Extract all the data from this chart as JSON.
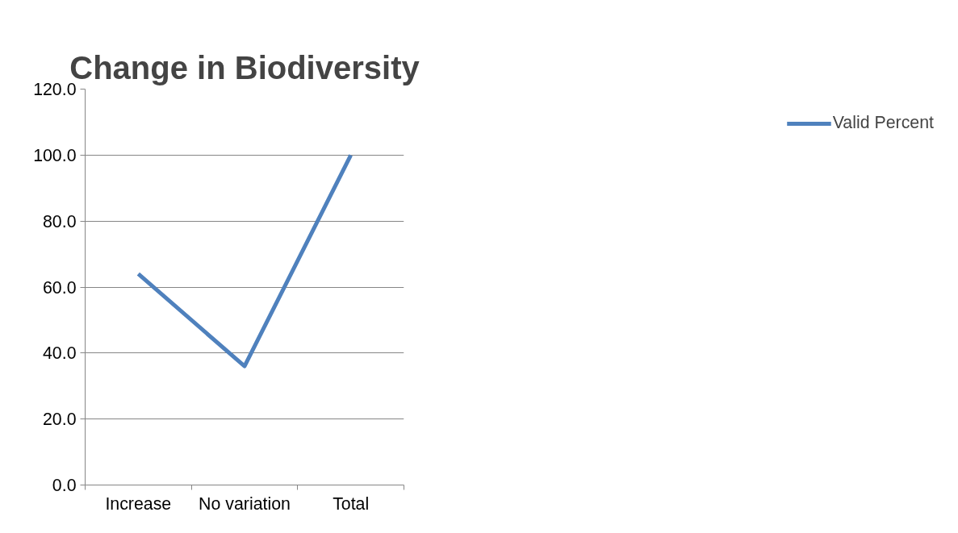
{
  "chart_data": {
    "type": "line",
    "title": "Change in Biodiversity",
    "categories": [
      "Increase",
      "No variation",
      "Total"
    ],
    "series": [
      {
        "name": "Valid Percent",
        "color": "#4f81bd",
        "values": [
          64.0,
          36.0,
          100.0
        ]
      }
    ],
    "ylim": [
      0,
      120
    ],
    "yticks": [
      {
        "value": 0,
        "label": "0.0"
      },
      {
        "value": 20,
        "label": "20.0"
      },
      {
        "value": 40,
        "label": "40.0"
      },
      {
        "value": 60,
        "label": "60.0"
      },
      {
        "value": 80,
        "label": "80.0"
      },
      {
        "value": 100,
        "label": "100.0"
      },
      {
        "value": 120,
        "label": "120.0"
      }
    ],
    "grid": "y",
    "legend": "right",
    "marker": "none",
    "line_style": "solid"
  }
}
